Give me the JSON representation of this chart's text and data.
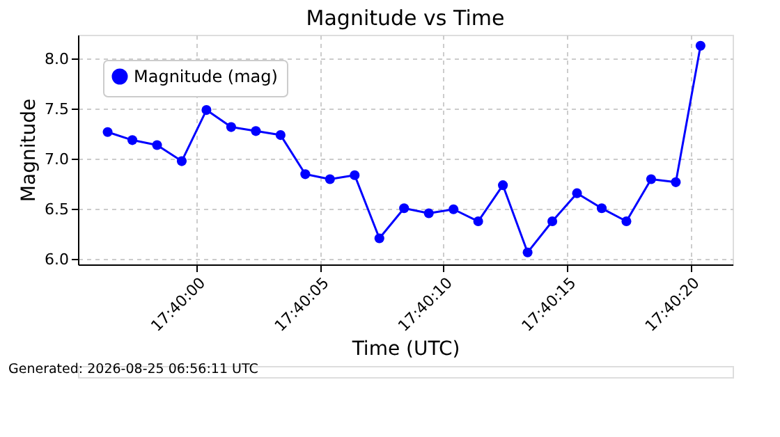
{
  "chart_data": {
    "type": "line",
    "title": "Magnitude vs Time",
    "xlabel": "Time (UTC)",
    "ylabel": "Magnitude",
    "x": [
      "2026-08-25T17:39:56.4",
      "2026-08-25T17:39:57.4",
      "2026-08-25T17:39:58.4",
      "2026-08-25T17:39:59.4",
      "2026-08-25T17:40:00.4",
      "2026-08-25T17:40:01.4",
      "2026-08-25T17:40:02.4",
      "2026-08-25T17:40:03.4",
      "2026-08-25T17:40:04.4",
      "2026-08-25T17:40:05.4",
      "2026-08-25T17:40:06.4",
      "2026-08-25T17:40:07.4",
      "2026-08-25T17:40:08.4",
      "2026-08-25T17:40:09.4",
      "2026-08-25T17:40:10.4",
      "2026-08-25T17:40:11.4",
      "2026-08-25T17:40:12.4",
      "2026-08-25T17:40:13.4",
      "2026-08-25T17:40:14.4",
      "2026-08-25T17:40:15.4",
      "2026-08-25T17:40:16.4",
      "2026-08-25T17:40:17.4",
      "2026-08-25T17:40:18.4",
      "2026-08-25T17:40:19.4",
      "2026-08-25T17:40:20.4"
    ],
    "series": [
      {
        "name": "Magnitude (mag)",
        "color": "#0000ff",
        "values": [
          7.27,
          7.19,
          7.14,
          6.98,
          7.49,
          7.32,
          7.28,
          7.24,
          6.85,
          6.8,
          6.84,
          6.21,
          6.51,
          6.46,
          6.5,
          6.38,
          6.74,
          6.07,
          6.38,
          6.66,
          6.51,
          6.38,
          6.8,
          6.77,
          8.13
        ]
      }
    ],
    "xlim": [
      "2026-08-25T17:39:55.2",
      "2026-08-25T17:40:21.7"
    ],
    "ylim": [
      5.95,
      8.24
    ],
    "xticks": [
      {
        "value": "2026-08-25T17:40:00",
        "label": "17:40:00"
      },
      {
        "value": "2026-08-25T17:40:05",
        "label": "17:40:05"
      },
      {
        "value": "2026-08-25T17:40:10",
        "label": "17:40:10"
      },
      {
        "value": "2026-08-25T17:40:15",
        "label": "17:40:15"
      },
      {
        "value": "2026-08-25T17:40:20",
        "label": "17:40:20"
      }
    ],
    "yticks": [
      {
        "value": 6,
        "label": "6.0"
      },
      6.5,
      {
        "value": 7,
        "label": "7.0"
      },
      7.5,
      {
        "value": 8,
        "label": "8.0"
      }
    ],
    "annotations": [
      "Generated: 2026-08-25 06:56:11 UTC"
    ],
    "grid": true,
    "legend": "top left",
    "marker": "circle",
    "line_style": "solid"
  }
}
